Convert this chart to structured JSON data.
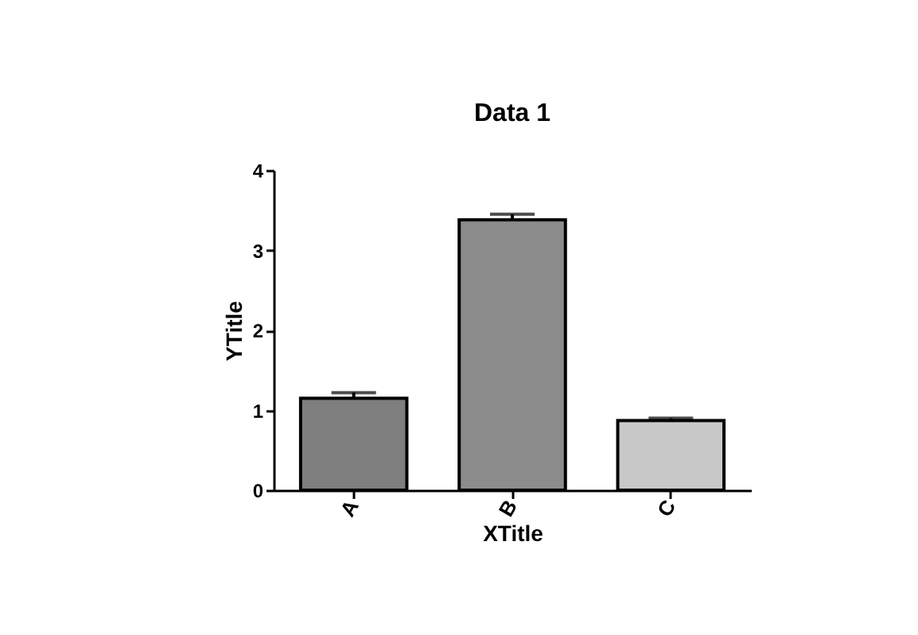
{
  "chart_data": {
    "type": "bar",
    "title": "Data 1",
    "xlabel": "XTitle",
    "ylabel": "YTitle",
    "categories": [
      "A",
      "B",
      "C"
    ],
    "values": [
      1.15,
      3.38,
      0.87
    ],
    "colors": [
      "#7f7f7f",
      "#8c8c8c",
      "#c8c8c8"
    ],
    "errors": [
      [
        1.15,
        1.22
      ],
      [
        3.38,
        3.45
      ],
      [
        0.87,
        0.9
      ]
    ],
    "ylim": [
      0,
      4
    ],
    "yticks": [
      0,
      1,
      2,
      3,
      4
    ],
    "grid": false
  }
}
